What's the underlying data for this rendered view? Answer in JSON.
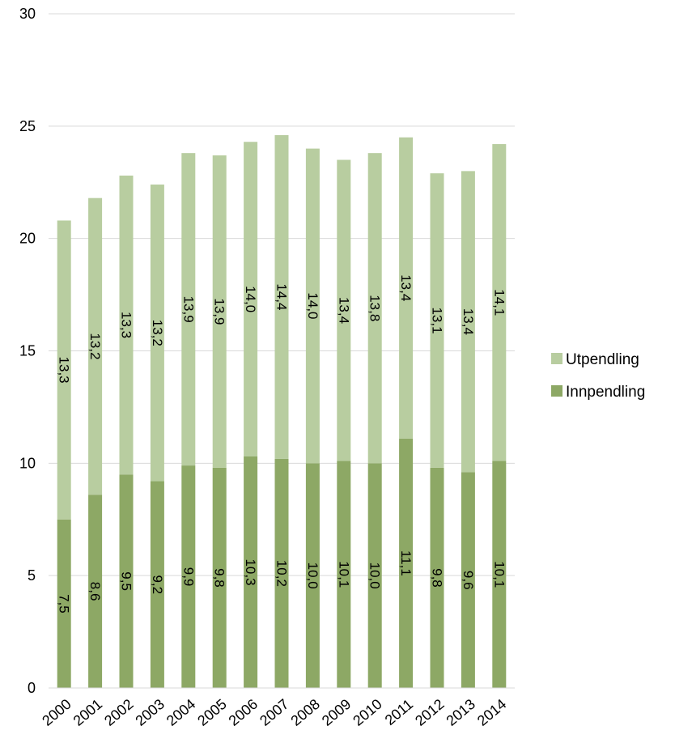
{
  "chart_data": {
    "type": "bar",
    "stacked": true,
    "categories": [
      "2000",
      "2001",
      "2002",
      "2003",
      "2004",
      "2005",
      "2006",
      "2007",
      "2008",
      "2009",
      "2010",
      "2011",
      "2012",
      "2013",
      "2014"
    ],
    "series": [
      {
        "name": "Innpendling",
        "color": "#8da865",
        "values": [
          7.5,
          8.6,
          9.5,
          9.2,
          9.9,
          9.8,
          10.3,
          10.2,
          10.0,
          10.1,
          10.0,
          11.1,
          9.8,
          9.6,
          10.1
        ],
        "labels": [
          "7,5",
          "8,6",
          "9,5",
          "9,2",
          "9,9",
          "9,8",
          "10,3",
          "10,2",
          "10,0",
          "10,1",
          "10,0",
          "11,1",
          "9,8",
          "9,6",
          "10,1"
        ]
      },
      {
        "name": "Utpendling",
        "color": "#b8cda0",
        "values": [
          13.3,
          13.2,
          13.3,
          13.2,
          13.9,
          13.9,
          14.0,
          14.4,
          14.0,
          13.4,
          13.8,
          13.4,
          13.1,
          13.4,
          14.1
        ],
        "labels": [
          "13,3",
          "13,2",
          "13,3",
          "13,2",
          "13,9",
          "13,9",
          "14,0",
          "14,4",
          "14,0",
          "13,4",
          "13,8",
          "13,4",
          "13,1",
          "13,4",
          "14,1"
        ]
      }
    ],
    "ylim": [
      0,
      30
    ],
    "yticks": [
      0,
      5,
      10,
      15,
      20,
      25,
      30
    ],
    "grid": true,
    "gridline_color": "#d9d9d9",
    "legend_position": "right",
    "legend_order": [
      "Utpendling",
      "Innpendling"
    ]
  }
}
